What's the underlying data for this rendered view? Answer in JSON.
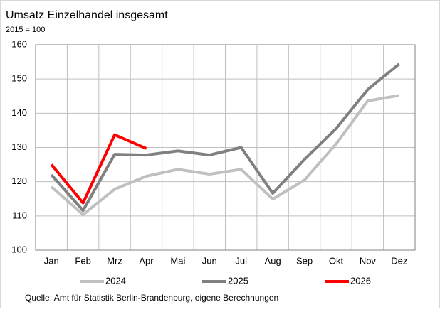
{
  "chart_data": {
    "type": "line",
    "title": "Umsatz Einzelhandel insgesamt",
    "subtitle": "2015 = 100",
    "source": "Quelle: Amt für Statistik Berlin-Brandenburg,  eigene Berechnungen",
    "categories": [
      "Jan",
      "Feb",
      "Mrz",
      "Apr",
      "Mai",
      "Jun",
      "Jul",
      "Aug",
      "Sep",
      "Okt",
      "Nov",
      "Dez"
    ],
    "series": [
      {
        "name": "2024",
        "color": "#c0c0c0",
        "values": [
          118.5,
          110.4,
          117.8,
          121.6,
          123.6,
          122.2,
          123.6,
          114.9,
          120.5,
          131,
          143.6,
          145.2
        ]
      },
      {
        "name": "2025",
        "color": "#808080",
        "values": [
          122,
          111.6,
          128,
          127.8,
          129,
          127.8,
          130,
          116.6,
          126.5,
          135.5,
          146.9,
          154.4
        ]
      },
      {
        "name": "2026",
        "color": "#ff0000",
        "values": [
          125,
          113.8,
          133.7,
          129.7,
          null,
          null,
          null,
          null,
          null,
          null,
          null,
          null
        ]
      }
    ],
    "ylim": [
      100,
      160
    ],
    "yticks": [
      100,
      110,
      120,
      130,
      140,
      150,
      160
    ],
    "grid": true,
    "legend": "bottom"
  }
}
